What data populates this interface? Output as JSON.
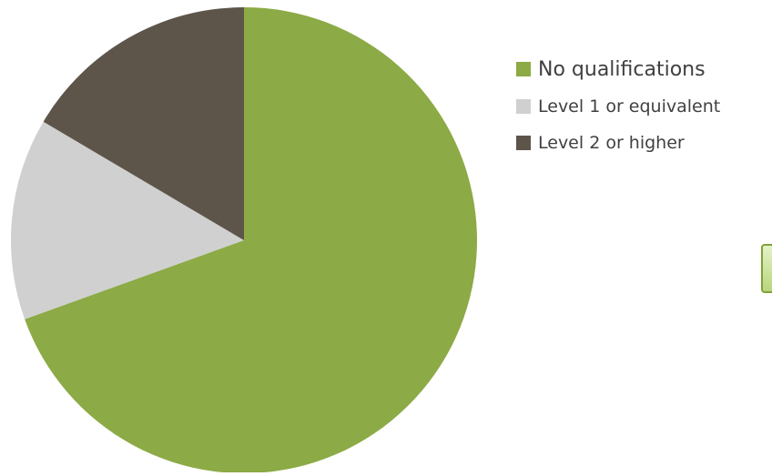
{
  "chart_data": {
    "type": "pie",
    "categories": [
      "No qualifications",
      "Level 1 or equivalent",
      "Level 2 or higher"
    ],
    "values": [
      69.5,
      14.0,
      16.5
    ],
    "colors": [
      "#8caa45",
      "#d0d0d0",
      "#5d554a"
    ],
    "title": "",
    "start_angle_deg": 0,
    "direction": "clockwise",
    "legend_position": "right"
  }
}
